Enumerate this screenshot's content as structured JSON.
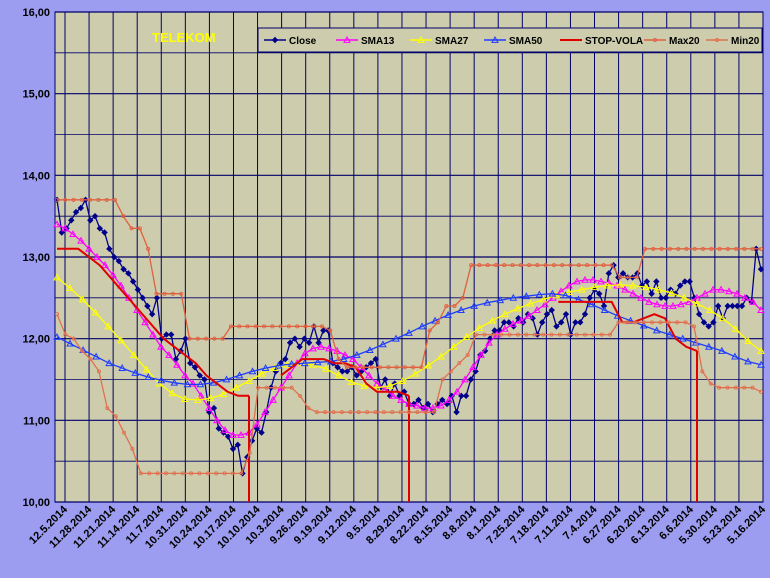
{
  "chart_data": {
    "type": "line",
    "title": "TELEKOM",
    "xlabel": "",
    "ylabel": "",
    "ylim": [
      10,
      16
    ],
    "yticks": [
      "10,00",
      "11,00",
      "12,00",
      "13,00",
      "14,00",
      "15,00",
      "16,00"
    ],
    "xticks": [
      "12.5.2014",
      "11.28.2014",
      "11.21.2014",
      "11.14.2014",
      "11.7.2014",
      "10.31.2014",
      "10.24.2014",
      "10.17.2014",
      "10.10.2014",
      "10.3.2014",
      "9.26.2014",
      "9.19.2014",
      "9.12.2014",
      "9.5.2014",
      "8.29.2014",
      "8.22.2014",
      "8.15.2014",
      "8.8.2014",
      "8.1.2014",
      "7.25.2014",
      "7.18.2014",
      "7.11.2014",
      "7.4.2014",
      "6.27.2014",
      "6.20.2014",
      "6.13.2014",
      "6.6.2014",
      "5.30.2014",
      "5.23.2014",
      "5.16.2014"
    ],
    "grid": true,
    "legend_position": "top-right",
    "series": [
      {
        "name": "Close",
        "color": "#00008b",
        "marker": "diamond",
        "values": [
          13.7,
          13.3,
          13.35,
          13.45,
          13.55,
          13.6,
          13.7,
          13.45,
          13.5,
          13.35,
          13.3,
          13.1,
          13.0,
          12.95,
          12.85,
          12.8,
          12.7,
          12.6,
          12.5,
          12.4,
          12.3,
          12.5,
          12.0,
          12.05,
          12.05,
          11.75,
          11.85,
          12.0,
          11.7,
          11.65,
          11.55,
          11.5,
          11.1,
          11.15,
          10.9,
          10.85,
          10.8,
          10.65,
          10.7,
          10.35,
          10.55,
          10.75,
          10.9,
          10.85,
          11.1,
          11.4,
          11.6,
          11.7,
          11.75,
          11.95,
          12.0,
          11.9,
          12.0,
          11.95,
          12.15,
          11.95,
          12.1,
          12.1,
          11.7,
          11.65,
          11.6,
          11.6,
          11.65,
          11.55,
          11.6,
          11.65,
          11.7,
          11.75,
          11.4,
          11.5,
          11.3,
          11.45,
          11.3,
          11.35,
          11.2,
          11.2,
          11.25,
          11.15,
          11.2,
          11.1,
          11.2,
          11.25,
          11.2,
          11.3,
          11.1,
          11.3,
          11.3,
          11.5,
          11.6,
          11.8,
          11.85,
          12.0,
          12.1,
          12.1,
          12.2,
          12.2,
          12.15,
          12.25,
          12.2,
          12.3,
          12.25,
          12.05,
          12.2,
          12.3,
          12.35,
          12.15,
          12.2,
          12.3,
          12.05,
          12.2,
          12.2,
          12.3,
          12.5,
          12.6,
          12.55,
          12.4,
          12.8,
          12.9,
          12.75,
          12.8,
          12.75,
          12.75,
          12.8,
          12.65,
          12.7,
          12.55,
          12.7,
          12.5,
          12.5,
          12.6,
          12.55,
          12.65,
          12.7,
          12.7,
          12.5,
          12.3,
          12.2,
          12.15,
          12.2,
          12.4,
          12.25,
          12.4,
          12.4,
          12.4,
          12.4,
          12.5,
          12.45,
          13.1,
          12.85
        ]
      },
      {
        "name": "SMA13",
        "color": "#ff00ff",
        "marker": "triangle",
        "values": [
          13.4,
          13.35,
          13.28,
          13.2,
          13.1,
          13.0,
          12.9,
          12.78,
          12.65,
          12.5,
          12.35,
          12.2,
          12.05,
          11.9,
          11.8,
          11.68,
          11.55,
          11.45,
          11.3,
          11.15,
          11.0,
          10.88,
          10.82,
          10.82,
          10.85,
          10.95,
          11.1,
          11.25,
          11.4,
          11.55,
          11.7,
          11.82,
          11.88,
          11.9,
          11.88,
          11.85,
          11.8,
          11.75,
          11.65,
          11.55,
          11.45,
          11.38,
          11.3,
          11.25,
          11.2,
          11.18,
          11.15,
          11.15,
          11.18,
          11.25,
          11.35,
          11.5,
          11.65,
          11.8,
          11.95,
          12.05,
          12.12,
          12.18,
          12.22,
          12.28,
          12.35,
          12.42,
          12.5,
          12.58,
          12.65,
          12.7,
          12.72,
          12.72,
          12.7,
          12.68,
          12.65,
          12.6,
          12.55,
          12.5,
          12.45,
          12.42,
          12.4,
          12.4,
          12.42,
          12.45,
          12.5,
          12.55,
          12.6,
          12.6,
          12.58,
          12.55,
          12.5,
          12.45,
          12.35
        ]
      },
      {
        "name": "SMA27",
        "color": "#ffff00",
        "marker": "triangle",
        "values": [
          12.75,
          12.62,
          12.48,
          12.32,
          12.15,
          11.98,
          11.8,
          11.62,
          11.45,
          11.33,
          11.26,
          11.25,
          11.27,
          11.32,
          11.4,
          11.48,
          11.57,
          11.64,
          11.68,
          11.7,
          11.68,
          11.63,
          11.55,
          11.47,
          11.42,
          11.4,
          11.42,
          11.48,
          11.57,
          11.67,
          11.78,
          11.9,
          12.02,
          12.13,
          12.22,
          12.3,
          12.37,
          12.43,
          12.48,
          12.53,
          12.57,
          12.6,
          12.63,
          12.65,
          12.66,
          12.65,
          12.63,
          12.6,
          12.56,
          12.5,
          12.43,
          12.35,
          12.25,
          12.12,
          11.97,
          11.85
        ]
      },
      {
        "name": "SMA50",
        "color": "#1e3cff",
        "marker": "triangle",
        "values": [
          12.02,
          11.94,
          11.86,
          11.78,
          11.7,
          11.64,
          11.58,
          11.53,
          11.49,
          11.46,
          11.44,
          11.44,
          11.46,
          11.5,
          11.55,
          11.6,
          11.64,
          11.67,
          11.69,
          11.7,
          11.71,
          11.72,
          11.75,
          11.8,
          11.86,
          11.93,
          12.0,
          12.07,
          12.15,
          12.22,
          12.29,
          12.35,
          12.4,
          12.44,
          12.47,
          12.5,
          12.52,
          12.54,
          12.55,
          12.53,
          12.48,
          12.42,
          12.35,
          12.28,
          12.22,
          12.16,
          12.1,
          12.05,
          12.0,
          11.95,
          11.9,
          11.85,
          11.78,
          11.72,
          11.68
        ]
      },
      {
        "name": "STOP-VOLA",
        "color": "#e00000",
        "marker": "none",
        "values": [
          13.1,
          13.1,
          13.1,
          13.0,
          12.9,
          12.75,
          12.6,
          12.45,
          12.3,
          12.15,
          12.0,
          11.9,
          11.8,
          11.7,
          11.55,
          11.45,
          11.35,
          11.3,
          11.3,
          null,
          null,
          11.55,
          11.65,
          11.75,
          11.75,
          11.75,
          11.7,
          11.7,
          11.65,
          11.45,
          11.35,
          11.35,
          11.35,
          11.3,
          null,
          null,
          null,
          null,
          null,
          null,
          null,
          null,
          null,
          null,
          null,
          null,
          null,
          12.45,
          12.45,
          12.45,
          12.45,
          12.45,
          12.45,
          12.2,
          12.2,
          12.25,
          12.3,
          12.25,
          12.0,
          11.9,
          11.85,
          null,
          null,
          null,
          null,
          null,
          null
        ]
      },
      {
        "name": "Max20",
        "color": "#e06040",
        "marker": "circle",
        "values": [
          13.7,
          13.7,
          13.7,
          13.7,
          13.7,
          13.7,
          13.7,
          13.7,
          13.5,
          13.35,
          13.35,
          13.1,
          12.55,
          12.55,
          12.55,
          12.55,
          12.0,
          12.0,
          12.0,
          12.0,
          12.0,
          12.15,
          12.15,
          12.15,
          12.15,
          12.15,
          12.15,
          12.15,
          12.15,
          12.15,
          12.15,
          12.15,
          12.15,
          12.1,
          11.75,
          11.65,
          11.65,
          11.65,
          11.65,
          11.65,
          11.65,
          11.65,
          11.65,
          11.65,
          11.65,
          12.1,
          12.2,
          12.4,
          12.4,
          12.5,
          12.9,
          12.9,
          12.9,
          12.9,
          12.9,
          12.9,
          12.9,
          12.9,
          12.9,
          12.9,
          12.9,
          12.9,
          12.9,
          12.9,
          12.9,
          12.9,
          12.9,
          12.9,
          12.75,
          12.75,
          12.75,
          13.1,
          13.1,
          13.1,
          13.1,
          13.1,
          13.1,
          13.1,
          13.1,
          13.1,
          13.1,
          13.1,
          13.1,
          13.1,
          13.1,
          13.1
        ]
      },
      {
        "name": "Min20",
        "color": "#e07050",
        "marker": "circle",
        "values": [
          12.3,
          12.05,
          12.0,
          11.85,
          11.75,
          11.6,
          11.15,
          11.05,
          10.85,
          10.65,
          10.35,
          10.35,
          10.35,
          10.35,
          10.35,
          10.35,
          10.35,
          10.35,
          10.35,
          10.35,
          10.35,
          10.35,
          10.35,
          10.6,
          11.4,
          11.4,
          11.4,
          11.4,
          11.4,
          11.3,
          11.15,
          11.1,
          11.1,
          11.1,
          11.1,
          11.1,
          11.1,
          11.1,
          11.1,
          11.1,
          11.1,
          11.1,
          11.1,
          11.1,
          11.1,
          11.1,
          11.5,
          11.6,
          11.7,
          11.8,
          12.05,
          12.05,
          12.05,
          12.05,
          12.05,
          12.05,
          12.05,
          12.05,
          12.05,
          12.05,
          12.05,
          12.05,
          12.05,
          12.05,
          12.05,
          12.05,
          12.05,
          12.2,
          12.2,
          12.2,
          12.2,
          12.2,
          12.2,
          12.2,
          12.2,
          12.2,
          12.15,
          11.6,
          11.45,
          11.4,
          11.4,
          11.4,
          11.4,
          11.4,
          11.35
        ]
      }
    ],
    "colors": {
      "background": "#9c9cf0",
      "plot": "#cdcdad",
      "grid": "#00006a",
      "title": "#ffff00"
    }
  }
}
